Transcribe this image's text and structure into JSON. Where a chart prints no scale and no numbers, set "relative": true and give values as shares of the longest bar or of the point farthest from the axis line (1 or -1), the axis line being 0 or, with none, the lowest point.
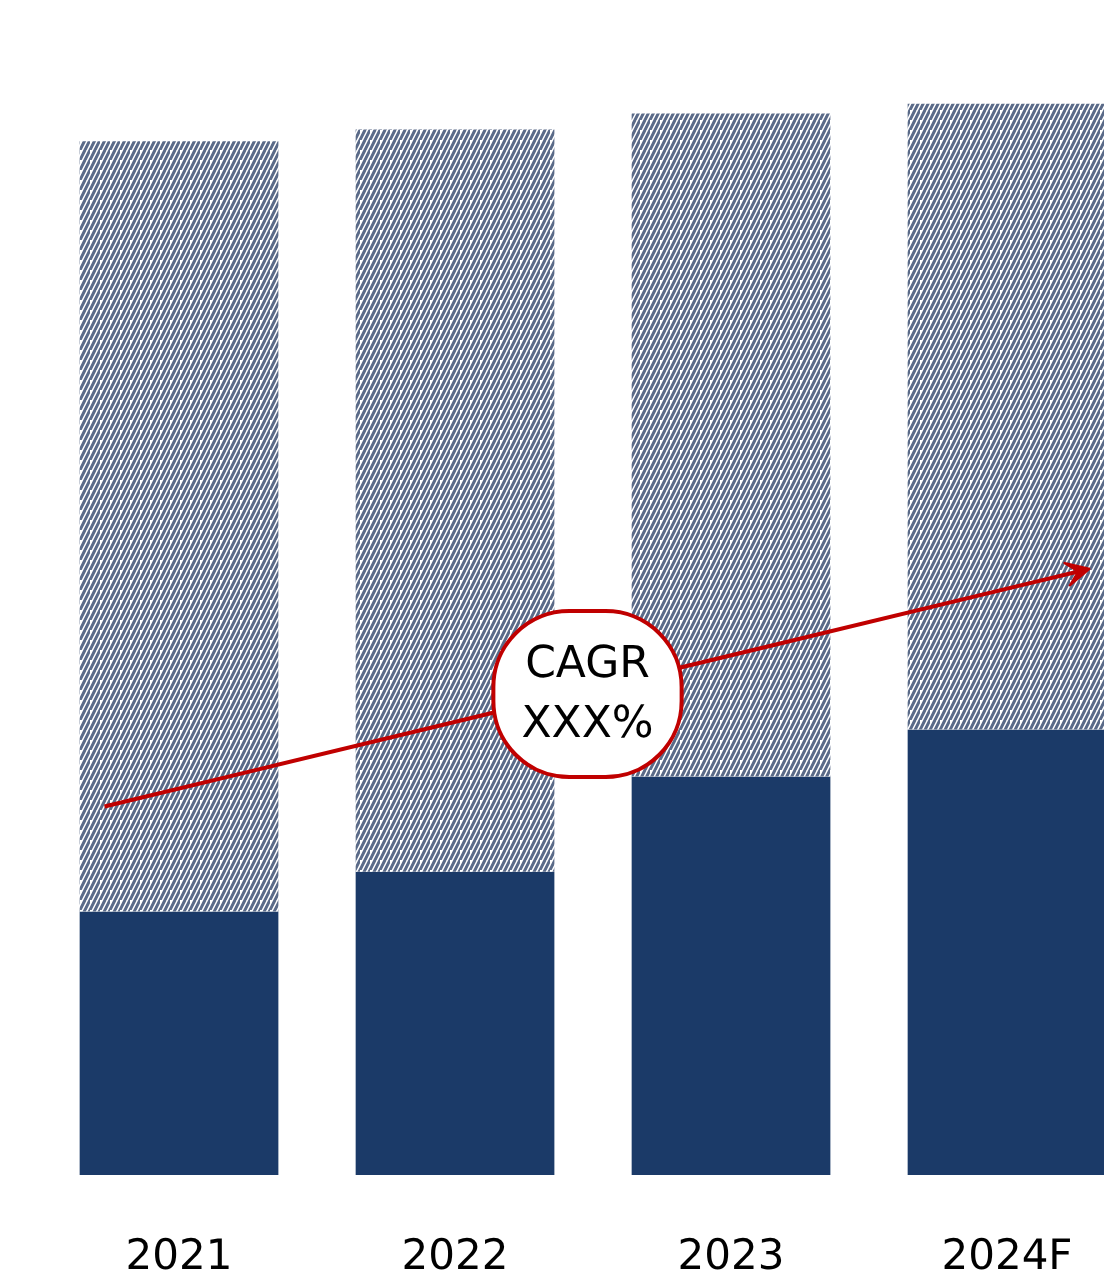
{
  "chart_data": {
    "type": "bar",
    "stacked": true,
    "relative": true,
    "categories": [
      "2021",
      "2022",
      "2023",
      "2024F"
    ],
    "series": [
      {
        "color": "#1b3a68",
        "values": [
          0.246,
          0.283,
          0.372,
          0.416
        ]
      },
      {
        "color": "#5a6a88",
        "values": [
          0.719,
          0.693,
          0.619,
          0.584
        ]
      }
    ],
    "annotations": [
      "CAGR\nXXX%"
    ],
    "grid": false
  }
}
